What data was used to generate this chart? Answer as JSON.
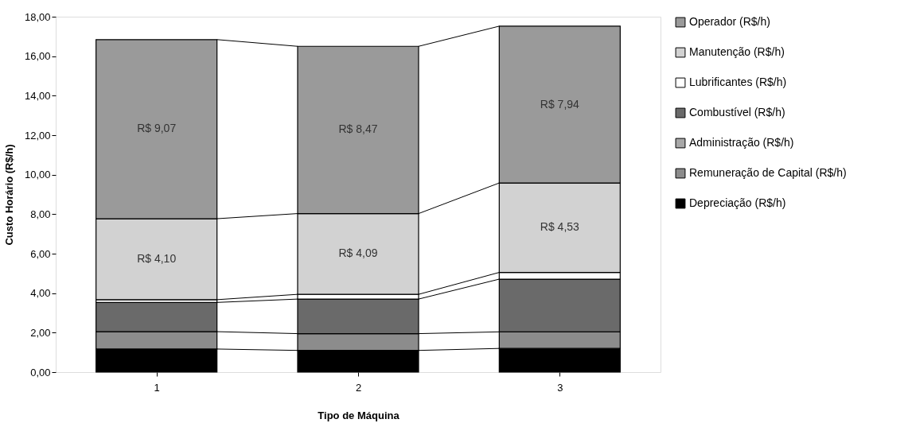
{
  "chart_data": {
    "type": "bar",
    "stacked": true,
    "xlabel": "Tipo de Máquina",
    "ylabel": "Custo Horário (R$/h)",
    "categories": [
      "1",
      "2",
      "3"
    ],
    "series": [
      {
        "name": "Depreciação (R$/h)",
        "color": "#000000",
        "values": [
          1.17,
          1.1,
          1.2
        ]
      },
      {
        "name": "Remuneração de Capital (R$/h)",
        "color": "#8c8c8c",
        "values": [
          0.88,
          0.85,
          0.84
        ]
      },
      {
        "name": "Administração (R$/h)",
        "color": "#a8a8a8",
        "values": [
          null,
          null,
          null
        ]
      },
      {
        "name": "Combustível (R$/h)",
        "color": "#6a6a6a",
        "values": [
          1.48,
          1.75,
          2.67
        ]
      },
      {
        "name": "Lubrificantes (R$/h)",
        "color": "#ffffff",
        "values": [
          0.14,
          0.24,
          0.34
        ]
      },
      {
        "name": "Manutenção (R$/h)",
        "color": "#d2d2d2",
        "values": [
          4.1,
          4.09,
          4.53
        ],
        "value_labels": [
          "R$ 4,10",
          "R$ 4,09",
          "R$ 4,53"
        ]
      },
      {
        "name": "Operador (R$/h)",
        "color": "#9a9a9a",
        "values": [
          9.07,
          8.47,
          7.94
        ],
        "value_labels": [
          "R$ 9,07",
          "R$ 8,47",
          "R$ 7,94"
        ]
      }
    ],
    "ylim": [
      0,
      18
    ],
    "yticks": [
      {
        "value": 0,
        "label": "0,00"
      },
      {
        "value": 2,
        "label": "2,00"
      },
      {
        "value": 4,
        "label": "4,00"
      },
      {
        "value": 6,
        "label": "6,00"
      },
      {
        "value": 8,
        "label": "8,00"
      },
      {
        "value": 10,
        "label": "10,00"
      },
      {
        "value": 12,
        "label": "12,00"
      },
      {
        "value": 14,
        "label": "14,00"
      },
      {
        "value": 16,
        "label": "16,00"
      },
      {
        "value": 18,
        "label": "18,00"
      }
    ],
    "grid": false,
    "legend": "right"
  }
}
